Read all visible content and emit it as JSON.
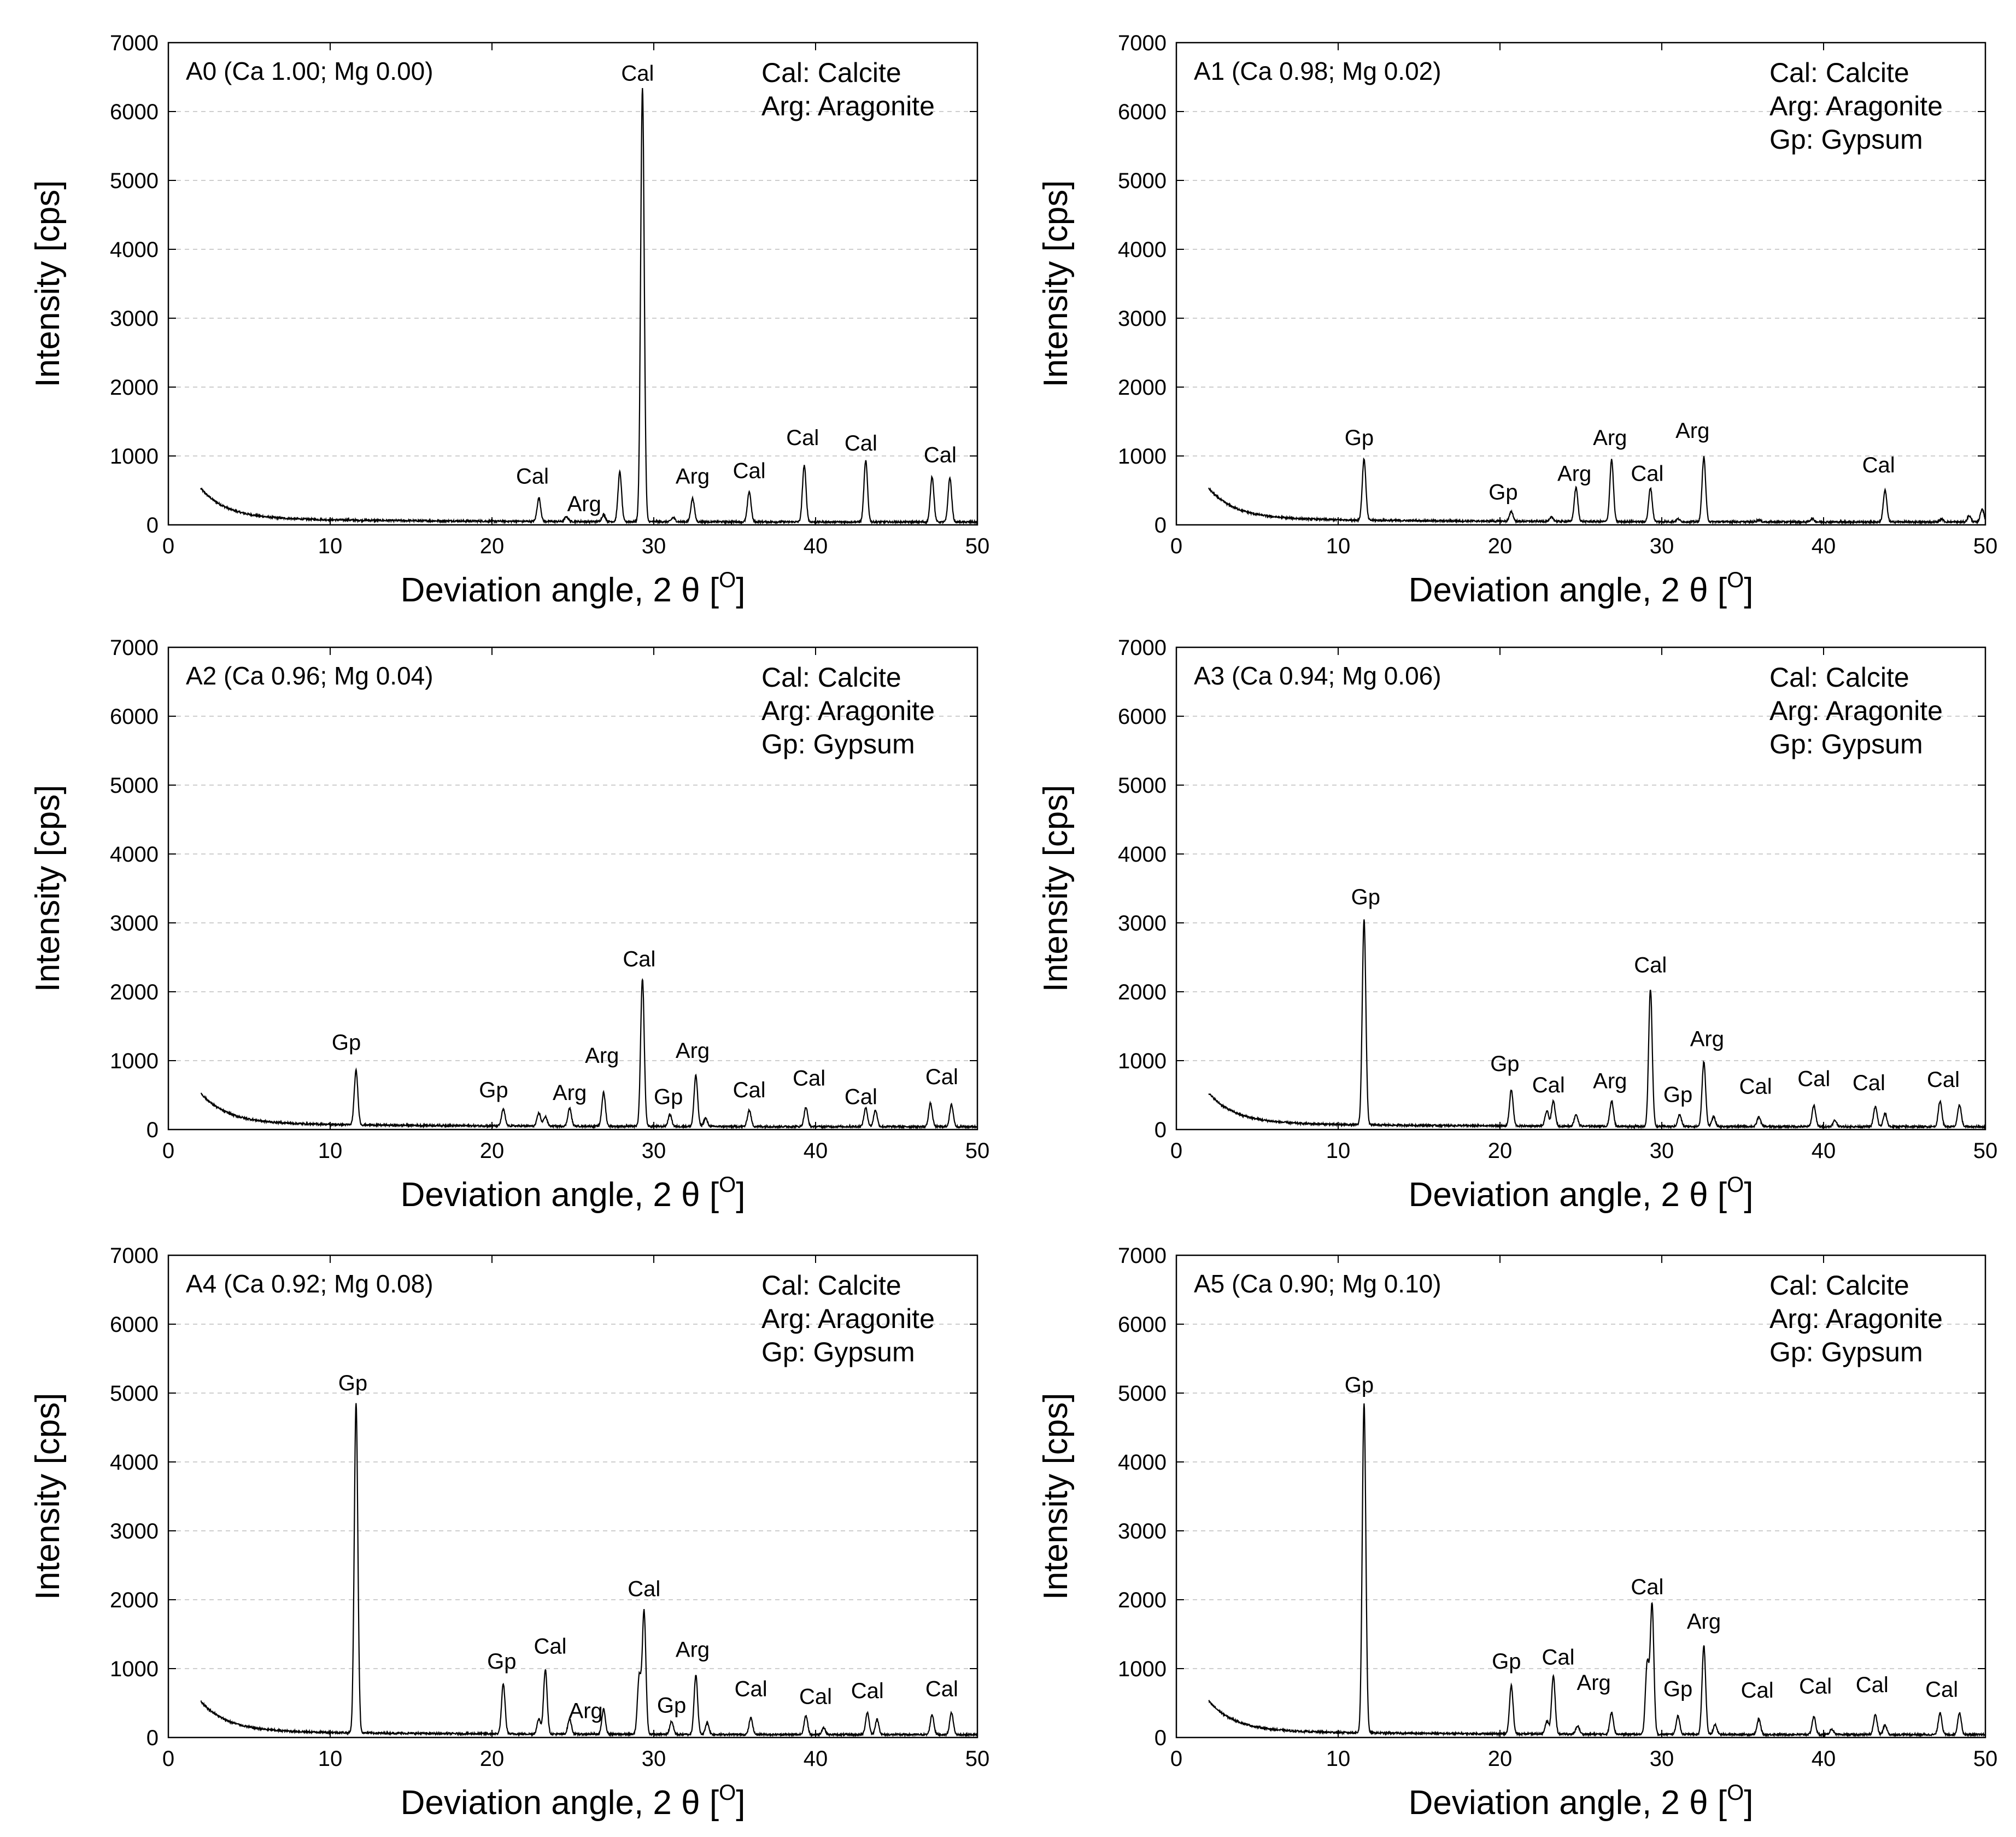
{
  "chart_data": [
    {
      "type": "line",
      "title": "A0 (Ca 1.00; Mg 0.00)",
      "xlabel": "Deviation angle, 2 θ [O]",
      "ylabel": "Intensity [cps]",
      "xlim": [
        0,
        50
      ],
      "ylim": [
        0,
        7000
      ],
      "xticks": [
        0,
        10,
        20,
        30,
        40,
        50
      ],
      "yticks": [
        0,
        1000,
        2000,
        3000,
        4000,
        5000,
        6000,
        7000
      ],
      "legend": [
        "Cal: Calcite",
        "Arg: Aragonite"
      ],
      "legend_position": "top-right",
      "peaks": [
        {
          "x": 22.9,
          "y": 400,
          "label": "Cal"
        },
        {
          "x": 24.6,
          "y": 130,
          "label": "Arg"
        },
        {
          "x": 26.9,
          "y": 160,
          "label": ""
        },
        {
          "x": 27.9,
          "y": 780,
          "label": ""
        },
        {
          "x": 29.3,
          "y": 6350,
          "label": "Cal"
        },
        {
          "x": 31.2,
          "y": 120,
          "label": ""
        },
        {
          "x": 32.4,
          "y": 400,
          "label": "Arg"
        },
        {
          "x": 35.9,
          "y": 500,
          "label": "Cal"
        },
        {
          "x": 39.3,
          "y": 880,
          "label": "Cal"
        },
        {
          "x": 43.1,
          "y": 950,
          "label": "Cal"
        },
        {
          "x": 47.2,
          "y": 720,
          "label": "Cal"
        },
        {
          "x": 48.3,
          "y": 700,
          "label": ""
        }
      ],
      "peak_labels": [
        {
          "x": 22.5,
          "y": 600,
          "text": "Cal"
        },
        {
          "x": 25.7,
          "y": 200,
          "text": "Arg"
        },
        {
          "x": 29.0,
          "y": 6450,
          "text": "Cal"
        },
        {
          "x": 32.4,
          "y": 600,
          "text": "Arg"
        },
        {
          "x": 35.9,
          "y": 680,
          "text": "Cal"
        },
        {
          "x": 39.2,
          "y": 1160,
          "text": "Cal"
        },
        {
          "x": 42.8,
          "y": 1080,
          "text": "Cal"
        },
        {
          "x": 47.7,
          "y": 910,
          "text": "Cal"
        }
      ]
    },
    {
      "type": "line",
      "title": "A1 (Ca 0.98; Mg 0.02)",
      "xlabel": "Deviation angle, 2 θ [O]",
      "ylabel": "Intensity [cps]",
      "xlim": [
        0,
        50
      ],
      "ylim": [
        0,
        7000
      ],
      "xticks": [
        0,
        10,
        20,
        30,
        40,
        50
      ],
      "yticks": [
        0,
        1000,
        2000,
        3000,
        4000,
        5000,
        6000,
        7000
      ],
      "legend": [
        "Cal: Calcite",
        "Arg: Aragonite",
        "Gp: Gypsum"
      ],
      "legend_position": "top-right",
      "peaks": [
        {
          "x": 11.6,
          "y": 950,
          "label": "Gp"
        },
        {
          "x": 20.7,
          "y": 200,
          "label": "Gp"
        },
        {
          "x": 23.2,
          "y": 120,
          "label": ""
        },
        {
          "x": 24.7,
          "y": 550,
          "label": "Arg"
        },
        {
          "x": 26.9,
          "y": 960,
          "label": "Arg"
        },
        {
          "x": 29.3,
          "y": 550,
          "label": "Cal"
        },
        {
          "x": 31.0,
          "y": 100,
          "label": ""
        },
        {
          "x": 32.6,
          "y": 1000,
          "label": "Arg"
        },
        {
          "x": 36.0,
          "y": 90,
          "label": ""
        },
        {
          "x": 39.3,
          "y": 110,
          "label": ""
        },
        {
          "x": 43.8,
          "y": 520,
          "label": "Cal"
        },
        {
          "x": 47.3,
          "y": 100,
          "label": ""
        },
        {
          "x": 49.0,
          "y": 150,
          "label": ""
        },
        {
          "x": 49.8,
          "y": 250,
          "label": ""
        }
      ],
      "peak_labels": [
        {
          "x": 11.3,
          "y": 1160,
          "text": "Gp"
        },
        {
          "x": 20.2,
          "y": 370,
          "text": "Gp"
        },
        {
          "x": 24.6,
          "y": 640,
          "text": "Arg"
        },
        {
          "x": 26.8,
          "y": 1160,
          "text": "Arg"
        },
        {
          "x": 29.1,
          "y": 640,
          "text": "Cal"
        },
        {
          "x": 31.9,
          "y": 1260,
          "text": "Arg"
        },
        {
          "x": 43.4,
          "y": 760,
          "text": "Cal"
        }
      ]
    },
    {
      "type": "line",
      "title": "A2 (Ca 0.96; Mg 0.04)",
      "xlabel": "Deviation angle, 2 θ [O]",
      "ylabel": "Intensity [cps]",
      "xlim": [
        0,
        50
      ],
      "ylim": [
        0,
        7000
      ],
      "xticks": [
        0,
        10,
        20,
        30,
        40,
        50
      ],
      "yticks": [
        0,
        1000,
        2000,
        3000,
        4000,
        5000,
        6000,
        7000
      ],
      "legend": [
        "Cal: Calcite",
        "Arg: Aragonite",
        "Gp: Gypsum"
      ],
      "legend_position": "top-right",
      "peaks": [
        {
          "x": 11.6,
          "y": 850,
          "label": "Gp"
        },
        {
          "x": 20.7,
          "y": 300,
          "label": "Gp"
        },
        {
          "x": 22.9,
          "y": 250,
          "label": ""
        },
        {
          "x": 23.3,
          "y": 200,
          "label": ""
        },
        {
          "x": 24.8,
          "y": 320,
          "label": "Arg"
        },
        {
          "x": 26.9,
          "y": 550,
          "label": "Arg"
        },
        {
          "x": 29.3,
          "y": 2200,
          "label": "Cal"
        },
        {
          "x": 31.0,
          "y": 230,
          "label": "Gp"
        },
        {
          "x": 32.6,
          "y": 800,
          "label": "Arg"
        },
        {
          "x": 33.2,
          "y": 180,
          "label": ""
        },
        {
          "x": 35.9,
          "y": 300,
          "label": "Cal"
        },
        {
          "x": 39.4,
          "y": 340,
          "label": "Cal"
        },
        {
          "x": 43.1,
          "y": 330,
          "label": "Cal"
        },
        {
          "x": 43.7,
          "y": 300,
          "label": ""
        },
        {
          "x": 47.1,
          "y": 400,
          "label": "Cal"
        },
        {
          "x": 48.4,
          "y": 380,
          "label": ""
        }
      ],
      "peak_labels": [
        {
          "x": 11.0,
          "y": 1160,
          "text": "Gp"
        },
        {
          "x": 20.1,
          "y": 470,
          "text": "Gp"
        },
        {
          "x": 24.8,
          "y": 430,
          "text": "Arg"
        },
        {
          "x": 26.8,
          "y": 970,
          "text": "Arg"
        },
        {
          "x": 29.1,
          "y": 2370,
          "text": "Cal"
        },
        {
          "x": 30.9,
          "y": 370,
          "text": "Gp"
        },
        {
          "x": 32.4,
          "y": 1040,
          "text": "Arg"
        },
        {
          "x": 35.9,
          "y": 470,
          "text": "Cal"
        },
        {
          "x": 39.6,
          "y": 640,
          "text": "Cal"
        },
        {
          "x": 42.8,
          "y": 370,
          "text": "Cal"
        },
        {
          "x": 47.8,
          "y": 660,
          "text": "Cal"
        }
      ]
    },
    {
      "type": "line",
      "title": "A3 (Ca 0.94; Mg 0.06)",
      "xlabel": "Deviation angle, 2 θ [O]",
      "ylabel": "Intensity [cps]",
      "xlim": [
        0,
        50
      ],
      "ylim": [
        0,
        7000
      ],
      "xticks": [
        0,
        10,
        20,
        30,
        40,
        50
      ],
      "yticks": [
        0,
        1000,
        2000,
        3000,
        4000,
        5000,
        6000,
        7000
      ],
      "legend": [
        "Cal: Calcite",
        "Arg: Aragonite",
        "Gp: Gypsum"
      ],
      "legend_position": "top-right",
      "peaks": [
        {
          "x": 11.6,
          "y": 3050,
          "label": "Gp"
        },
        {
          "x": 20.7,
          "y": 580,
          "label": "Gp"
        },
        {
          "x": 22.9,
          "y": 280,
          "label": ""
        },
        {
          "x": 23.3,
          "y": 420,
          "label": "Cal"
        },
        {
          "x": 24.7,
          "y": 230,
          "label": ""
        },
        {
          "x": 26.9,
          "y": 430,
          "label": "Arg"
        },
        {
          "x": 29.3,
          "y": 2050,
          "label": "Cal"
        },
        {
          "x": 31.1,
          "y": 230,
          "label": "Gp"
        },
        {
          "x": 32.6,
          "y": 1000,
          "label": "Arg"
        },
        {
          "x": 33.2,
          "y": 200,
          "label": ""
        },
        {
          "x": 36.0,
          "y": 200,
          "label": "Cal"
        },
        {
          "x": 39.4,
          "y": 370,
          "label": "Cal"
        },
        {
          "x": 40.7,
          "y": 150,
          "label": ""
        },
        {
          "x": 43.2,
          "y": 350,
          "label": "Cal"
        },
        {
          "x": 43.8,
          "y": 250,
          "label": ""
        },
        {
          "x": 47.2,
          "y": 430,
          "label": "Cal"
        },
        {
          "x": 48.4,
          "y": 380,
          "label": ""
        }
      ],
      "peak_labels": [
        {
          "x": 11.7,
          "y": 3270,
          "text": "Gp"
        },
        {
          "x": 20.3,
          "y": 850,
          "text": "Gp"
        },
        {
          "x": 23.0,
          "y": 540,
          "text": "Cal"
        },
        {
          "x": 26.8,
          "y": 600,
          "text": "Arg"
        },
        {
          "x": 29.3,
          "y": 2280,
          "text": "Cal"
        },
        {
          "x": 31.0,
          "y": 400,
          "text": "Gp"
        },
        {
          "x": 32.8,
          "y": 1210,
          "text": "Arg"
        },
        {
          "x": 35.8,
          "y": 520,
          "text": "Cal"
        },
        {
          "x": 39.4,
          "y": 630,
          "text": "Cal"
        },
        {
          "x": 42.8,
          "y": 570,
          "text": "Cal"
        },
        {
          "x": 47.4,
          "y": 620,
          "text": "Cal"
        }
      ]
    },
    {
      "type": "line",
      "title": "A4 (Ca 0.92; Mg 0.08)",
      "xlabel": "Deviation angle, 2 θ [O]",
      "ylabel": "Intensity [cps]",
      "xlim": [
        0,
        50
      ],
      "ylim": [
        0,
        7000
      ],
      "xticks": [
        0,
        10,
        20,
        30,
        40,
        50
      ],
      "yticks": [
        0,
        1000,
        2000,
        3000,
        4000,
        5000,
        6000,
        7000
      ],
      "legend": [
        "Cal: Calcite",
        "Arg: Aragonite",
        "Gp: Gypsum"
      ],
      "legend_position": "top-right",
      "peaks": [
        {
          "x": 11.6,
          "y": 4850,
          "label": "Gp"
        },
        {
          "x": 20.7,
          "y": 780,
          "label": "Gp"
        },
        {
          "x": 22.9,
          "y": 280,
          "label": ""
        },
        {
          "x": 23.3,
          "y": 1000,
          "label": "Cal"
        },
        {
          "x": 24.8,
          "y": 280,
          "label": "Arg"
        },
        {
          "x": 26.9,
          "y": 420,
          "label": ""
        },
        {
          "x": 29.1,
          "y": 900,
          "label": ""
        },
        {
          "x": 29.4,
          "y": 1850,
          "label": "Cal"
        },
        {
          "x": 31.1,
          "y": 250,
          "label": "Gp"
        },
        {
          "x": 32.6,
          "y": 920,
          "label": "Arg"
        },
        {
          "x": 33.3,
          "y": 230,
          "label": ""
        },
        {
          "x": 36.0,
          "y": 300,
          "label": "Cal"
        },
        {
          "x": 39.4,
          "y": 330,
          "label": "Cal"
        },
        {
          "x": 40.5,
          "y": 160,
          "label": ""
        },
        {
          "x": 43.2,
          "y": 380,
          "label": "Cal"
        },
        {
          "x": 43.8,
          "y": 280,
          "label": ""
        },
        {
          "x": 47.2,
          "y": 350,
          "label": "Cal"
        },
        {
          "x": 48.4,
          "y": 380,
          "label": ""
        }
      ],
      "peak_labels": [
        {
          "x": 11.4,
          "y": 5040,
          "text": "Gp"
        },
        {
          "x": 20.6,
          "y": 1000,
          "text": "Gp"
        },
        {
          "x": 23.6,
          "y": 1220,
          "text": "Cal"
        },
        {
          "x": 25.8,
          "y": 280,
          "text": "Arg"
        },
        {
          "x": 29.4,
          "y": 2050,
          "text": "Cal"
        },
        {
          "x": 31.1,
          "y": 360,
          "text": "Gp"
        },
        {
          "x": 32.4,
          "y": 1170,
          "text": "Arg"
        },
        {
          "x": 36.0,
          "y": 600,
          "text": "Cal"
        },
        {
          "x": 40.0,
          "y": 490,
          "text": "Cal"
        },
        {
          "x": 43.2,
          "y": 570,
          "text": "Cal"
        },
        {
          "x": 47.8,
          "y": 600,
          "text": "Cal"
        }
      ]
    },
    {
      "type": "line",
      "title": "A5 (Ca 0.90; Mg 0.10)",
      "xlabel": "Deviation angle, 2 θ [O]",
      "ylabel": "Intensity [cps]",
      "xlim": [
        0,
        50
      ],
      "ylim": [
        0,
        7000
      ],
      "xticks": [
        0,
        10,
        20,
        30,
        40,
        50
      ],
      "yticks": [
        0,
        1000,
        2000,
        3000,
        4000,
        5000,
        6000,
        7000
      ],
      "legend": [
        "Cal: Calcite",
        "Arg: Aragonite",
        "Gp: Gypsum"
      ],
      "legend_position": "top-right",
      "peaks": [
        {
          "x": 11.6,
          "y": 4850,
          "label": "Gp"
        },
        {
          "x": 20.7,
          "y": 760,
          "label": "Gp"
        },
        {
          "x": 22.9,
          "y": 250,
          "label": ""
        },
        {
          "x": 23.3,
          "y": 900,
          "label": "Cal"
        },
        {
          "x": 24.8,
          "y": 180,
          "label": ""
        },
        {
          "x": 26.9,
          "y": 380,
          "label": "Arg"
        },
        {
          "x": 29.1,
          "y": 1100,
          "label": ""
        },
        {
          "x": 29.4,
          "y": 1950,
          "label": "Cal"
        },
        {
          "x": 31.0,
          "y": 330,
          "label": "Gp"
        },
        {
          "x": 32.6,
          "y": 1350,
          "label": "Arg"
        },
        {
          "x": 33.3,
          "y": 200,
          "label": ""
        },
        {
          "x": 36.0,
          "y": 280,
          "label": "Cal"
        },
        {
          "x": 39.4,
          "y": 320,
          "label": "Cal"
        },
        {
          "x": 40.5,
          "y": 140,
          "label": ""
        },
        {
          "x": 43.2,
          "y": 350,
          "label": "Cal"
        },
        {
          "x": 43.8,
          "y": 200,
          "label": ""
        },
        {
          "x": 47.2,
          "y": 380,
          "label": "Cal"
        },
        {
          "x": 48.4,
          "y": 380,
          "label": ""
        }
      ],
      "peak_labels": [
        {
          "x": 11.3,
          "y": 5010,
          "text": "Gp"
        },
        {
          "x": 20.4,
          "y": 1000,
          "text": "Gp"
        },
        {
          "x": 23.6,
          "y": 1060,
          "text": "Cal"
        },
        {
          "x": 25.8,
          "y": 690,
          "text": "Arg"
        },
        {
          "x": 29.1,
          "y": 2080,
          "text": "Cal"
        },
        {
          "x": 31.0,
          "y": 600,
          "text": "Gp"
        },
        {
          "x": 32.6,
          "y": 1580,
          "text": "Arg"
        },
        {
          "x": 35.9,
          "y": 580,
          "text": "Cal"
        },
        {
          "x": 39.5,
          "y": 640,
          "text": "Cal"
        },
        {
          "x": 43.0,
          "y": 660,
          "text": "Cal"
        },
        {
          "x": 47.3,
          "y": 590,
          "text": "Cal"
        }
      ]
    }
  ]
}
